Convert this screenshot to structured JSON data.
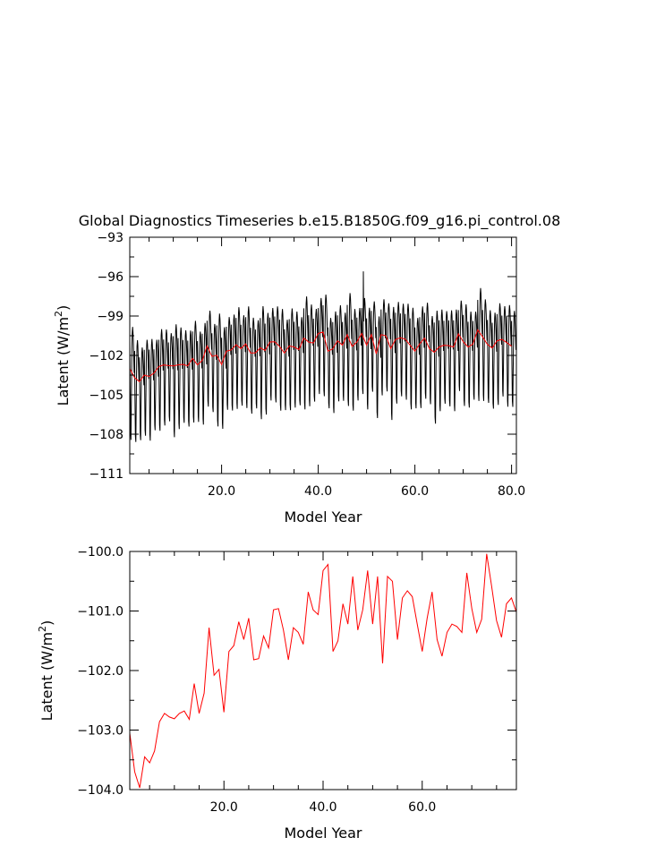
{
  "title": "Global Diagnostics Timeseries b.e15.B1850G.f09_g16.pi_control.08",
  "colors": {
    "monthly": "#000000",
    "annual": "#ff0000",
    "axes": "#000000"
  },
  "chart_data": [
    {
      "type": "line",
      "xlabel": "Model Year",
      "ylabel_main": "Latent (W/m",
      "ylabel_sup": "2",
      "ylabel_close": ")",
      "xlim": [
        1,
        81
      ],
      "ylim": [
        -111,
        -93
      ],
      "xticks": [
        20,
        40,
        60,
        80
      ],
      "xtick_labels": [
        "20.0",
        "40.0",
        "60.0",
        "80.0"
      ],
      "yticks": [
        -111,
        -108,
        -105,
        -102,
        -99,
        -96,
        -93
      ],
      "ytick_labels": [
        "−111",
        "−108",
        "−105",
        "−102",
        "−99",
        "−96",
        "−93"
      ],
      "series": [
        {
          "color": "#000000",
          "monthly_pattern": [
            -100.4,
            -104.2,
            -107.6,
            -108.1,
            -104.9,
            -101.6,
            -100.0,
            -99.5,
            -99.9,
            -100.8,
            -102.0,
            -103.0
          ],
          "monthly_amplitude_scale": [
            1.0,
            0.9,
            0.82,
            0.85,
            0.9,
            0.8,
            0.9,
            0.85,
            0.78
          ],
          "note_peaks": [
            [
              49.3,
              -95.6
            ]
          ]
        },
        {
          "color": "#ff0000",
          "x": [
            1,
            2,
            3,
            4,
            5,
            6,
            7,
            8,
            9,
            10,
            11,
            12,
            13,
            14,
            15,
            16,
            17,
            18,
            19,
            20,
            21,
            22,
            23,
            24,
            25,
            26,
            27,
            28,
            29,
            30,
            31,
            32,
            33,
            34,
            35,
            36,
            37,
            38,
            39,
            40,
            41,
            42,
            43,
            44,
            45,
            46,
            47,
            48,
            49,
            50,
            51,
            52,
            53,
            54,
            55,
            56,
            57,
            58,
            59,
            60,
            61,
            62,
            63,
            64,
            65,
            66,
            67,
            68,
            69,
            70,
            71,
            72,
            73,
            74,
            75,
            76,
            77,
            78,
            79,
            80
          ],
          "values": [
            -103.0,
            -103.7,
            -104.0,
            -103.5,
            -103.6,
            -103.35,
            -102.85,
            -102.72,
            -102.78,
            -102.8,
            -102.72,
            -102.68,
            -102.8,
            -102.22,
            -102.72,
            -102.38,
            -101.28,
            -102.08,
            -101.98,
            -102.7,
            -101.68,
            -101.58,
            -101.18,
            -101.48,
            -101.12,
            -101.82,
            -101.8,
            -101.42,
            -101.62,
            -100.98,
            -100.96,
            -101.32,
            -101.82,
            -101.28,
            -101.36,
            -101.56,
            -100.68,
            -100.98,
            -101.06,
            -100.32,
            -100.22,
            -101.68,
            -101.5,
            -100.88,
            -101.22,
            -100.42,
            -101.32,
            -100.98,
            -100.32,
            -101.22,
            -100.42,
            -101.88,
            -100.42,
            -100.5,
            -101.48,
            -100.78,
            -100.66,
            -100.76,
            -101.22,
            -101.68,
            -101.12,
            -100.68,
            -101.48,
            -101.76,
            -101.36,
            -101.22,
            -101.26,
            -101.36,
            -100.36,
            -100.96,
            -101.36,
            -101.14,
            -100.04,
            -100.58,
            -101.16,
            -101.44,
            -100.88,
            -100.78,
            -101.02,
            -101.3
          ]
        }
      ]
    },
    {
      "type": "line",
      "xlabel": "Model Year",
      "ylabel_main": "Latent (W/m",
      "ylabel_sup": "2",
      "ylabel_close": ")",
      "xlim": [
        1,
        79
      ],
      "ylim": [
        -104,
        -100
      ],
      "xticks": [
        20,
        40,
        60
      ],
      "xtick_labels": [
        "20.0",
        "40.0",
        "60.0"
      ],
      "yticks": [
        -104,
        -103,
        -102,
        -101,
        -100
      ],
      "ytick_labels": [
        "−104.0",
        "−103.0",
        "−102.0",
        "−101.0",
        "−100.0"
      ],
      "series": [
        {
          "color": "#ff0000",
          "x": [
            1,
            2,
            3,
            4,
            5,
            6,
            7,
            8,
            9,
            10,
            11,
            12,
            13,
            14,
            15,
            16,
            17,
            18,
            19,
            20,
            21,
            22,
            23,
            24,
            25,
            26,
            27,
            28,
            29,
            30,
            31,
            32,
            33,
            34,
            35,
            36,
            37,
            38,
            39,
            40,
            41,
            42,
            43,
            44,
            45,
            46,
            47,
            48,
            49,
            50,
            51,
            52,
            53,
            54,
            55,
            56,
            57,
            58,
            59,
            60,
            61,
            62,
            63,
            64,
            65,
            66,
            67,
            68,
            69,
            70,
            71,
            72,
            73,
            74,
            75,
            76,
            77,
            78,
            79
          ],
          "values": [
            -103.05,
            -103.7,
            -103.97,
            -103.45,
            -103.55,
            -103.35,
            -102.86,
            -102.72,
            -102.78,
            -102.81,
            -102.72,
            -102.68,
            -102.82,
            -102.22,
            -102.72,
            -102.38,
            -101.28,
            -102.08,
            -101.98,
            -102.7,
            -101.68,
            -101.58,
            -101.18,
            -101.48,
            -101.12,
            -101.82,
            -101.8,
            -101.42,
            -101.62,
            -100.98,
            -100.96,
            -101.32,
            -101.82,
            -101.28,
            -101.36,
            -101.56,
            -100.68,
            -100.98,
            -101.06,
            -100.32,
            -100.22,
            -101.68,
            -101.5,
            -100.88,
            -101.22,
            -100.42,
            -101.32,
            -100.98,
            -100.32,
            -101.22,
            -100.42,
            -101.88,
            -100.42,
            -100.5,
            -101.48,
            -100.78,
            -100.66,
            -100.76,
            -101.22,
            -101.68,
            -101.12,
            -100.68,
            -101.48,
            -101.76,
            -101.36,
            -101.22,
            -101.26,
            -101.36,
            -100.36,
            -100.96,
            -101.36,
            -101.14,
            -100.04,
            -100.58,
            -101.16,
            -101.44,
            -100.88,
            -100.78,
            -101.02
          ]
        }
      ]
    }
  ]
}
